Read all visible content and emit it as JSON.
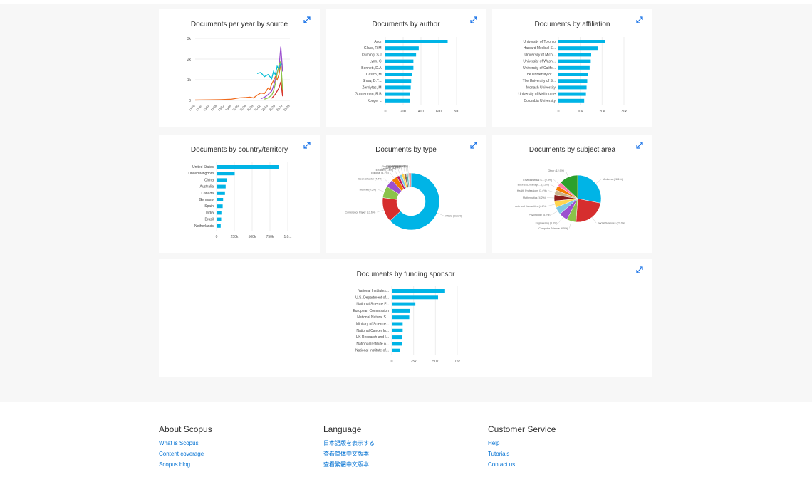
{
  "charts": {
    "year_by_source": {
      "title": "Documents per year by source",
      "y_ticks": [
        "0",
        "1k",
        "2k",
        "3k"
      ],
      "x_ticks": [
        "1976",
        "1980",
        "1984",
        "1988",
        "1992",
        "1996",
        "2000",
        "2004",
        "2008",
        "2012",
        "2016",
        "2020",
        "2024",
        "2028"
      ]
    },
    "by_author": {
      "title": "Documents by author",
      "labels": [
        "Anon",
        "Glass, R.M.",
        "Durning, S.J.",
        "Lynn, C.",
        "Bennett, D.A.",
        "Castro, M.",
        "Shaw, D.T.L.",
        "Zemlytas, M.",
        "Gunderman, R.B.",
        "Konge, L."
      ],
      "ticks": [
        "0",
        "200",
        "400",
        "600",
        "800"
      ]
    },
    "by_affiliation": {
      "title": "Documents by affiliation",
      "labels": [
        "University of Toronto",
        "Harvard Medical S...",
        "University of Mich...",
        "University of Wash...",
        "University of Califo...",
        "The University of ...",
        "The University of S...",
        "Monash University",
        "University of Melbourne",
        "Columbia University"
      ],
      "ticks": [
        "0",
        "10k",
        "20k",
        "30k"
      ]
    },
    "by_country": {
      "title": "Documents by country/territory",
      "labels": [
        "United States",
        "United Kingdom",
        "China",
        "Australia",
        "Canada",
        "Germany",
        "Spain",
        "India",
        "Brazil",
        "Netherlands"
      ],
      "ticks": [
        "0",
        "250k",
        "500k",
        "750k",
        "1.0..."
      ]
    },
    "by_type": {
      "title": "Documents by type",
      "slice_labels": [
        "Article (61.1%)",
        "Conference Paper (13.6%)",
        "Review (6.5%)",
        "Book Chapter (4.4%)",
        "Editorial (3.1%)",
        "Erratum (1.5%)",
        "Letter (1.5%)",
        "Note (1.3%)",
        "Book (1.2%)",
        "Short Survey (0.9%)",
        "Undefined (0.5%)",
        "Other (1.2%)"
      ]
    },
    "by_subject": {
      "title": "Documents by subject area",
      "slice_labels": [
        "Medicine (28.1%)",
        "Social Sciences (23.0%)",
        "Computer Science (6.5%)",
        "Engineering (6.0%)",
        "Psychology (5.2%)",
        "Arts and Humanities (4.6%)",
        "Mathematics (4.2%)",
        "Health Professions (3.4%)",
        "Business, Manage... (3.2%)",
        "Environmental S... (2.9%)",
        "Other (12.9%)"
      ]
    },
    "by_sponsor": {
      "title": "Documents by funding sponsor",
      "labels": [
        "National Institutes...",
        "U.S. Department of...",
        "National Science F...",
        "European Commission",
        "National Natural S...",
        "Ministry of Science...",
        "National Cancer In...",
        "UK Research and I...",
        "National Institute o...",
        "National Institute of..."
      ],
      "ticks": [
        "0",
        "25k",
        "50k",
        "75k"
      ]
    }
  },
  "chart_data": [
    {
      "type": "line",
      "title": "Documents per year by source",
      "ylim": [
        0,
        3000
      ],
      "xlim": [
        1976,
        2028
      ],
      "series": [
        {
          "color": "#f06a1c",
          "x": [
            1976,
            1984,
            1990,
            1996,
            2000,
            2004,
            2006,
            2008,
            2010,
            2012,
            2014,
            2015,
            2016,
            2017,
            2018,
            2019,
            2020,
            2021,
            2022,
            2023,
            2024
          ],
          "values": [
            20,
            30,
            40,
            60,
            120,
            140,
            160,
            120,
            250,
            360,
            330,
            450,
            600,
            520,
            800,
            960,
            1150,
            1000,
            1250,
            1750,
            300
          ]
        },
        {
          "color": "#00bcd4",
          "x": [
            2010,
            2012,
            2014,
            2016,
            2018,
            2019,
            2020,
            2021,
            2022,
            2023,
            2024
          ],
          "values": [
            1300,
            1350,
            1150,
            1250,
            1050,
            1400,
            1250,
            1650,
            1500,
            1800,
            1700
          ]
        },
        {
          "color": "#9c4fcf",
          "x": [
            2012,
            2014,
            2016,
            2018,
            2019,
            2020,
            2021,
            2022,
            2023,
            2024
          ],
          "values": [
            80,
            150,
            280,
            450,
            700,
            1000,
            1350,
            1600,
            2600,
            1400
          ]
        },
        {
          "color": "#8bc34a",
          "x": [
            2014,
            2016,
            2018,
            2019,
            2020,
            2021,
            2022,
            2023,
            2024
          ],
          "values": [
            60,
            120,
            250,
            450,
            800,
            1300,
            1700,
            1900,
            500
          ]
        },
        {
          "color": "#d32f2f",
          "x": [
            2018,
            2020,
            2022,
            2023,
            2024
          ],
          "values": [
            100,
            300,
            600,
            900,
            200
          ]
        }
      ]
    },
    {
      "type": "bar",
      "title": "Documents by author",
      "categories": [
        "Anon",
        "Glass, R.M.",
        "Durning, S.J.",
        "Lynn, C.",
        "Bennett, D.A.",
        "Castro, M.",
        "Shaw, D.T.L.",
        "Zemlytas, M.",
        "Gunderman, R.B.",
        "Konge, L."
      ],
      "values": [
        700,
        375,
        345,
        315,
        315,
        300,
        290,
        285,
        280,
        275
      ],
      "xlim": [
        0,
        800
      ]
    },
    {
      "type": "bar",
      "title": "Documents by affiliation",
      "categories": [
        "University of Toronto",
        "Harvard Medical S...",
        "University of Mich...",
        "University of Wash...",
        "University of Califo...",
        "The University of ...",
        "The University of S...",
        "Monash University",
        "University of Melbourne",
        "Columbia University"
      ],
      "values": [
        21500,
        18000,
        15000,
        14800,
        14300,
        13600,
        13200,
        12900,
        12600,
        11800
      ],
      "xlim": [
        0,
        30000
      ]
    },
    {
      "type": "bar",
      "title": "Documents by country/territory",
      "categories": [
        "United States",
        "United Kingdom",
        "China",
        "Australia",
        "Canada",
        "Germany",
        "Spain",
        "India",
        "Brazil",
        "Netherlands"
      ],
      "values": [
        880000,
        255000,
        150000,
        128000,
        118000,
        92000,
        86000,
        68000,
        65000,
        58000
      ],
      "xlim": [
        0,
        1000000
      ]
    },
    {
      "type": "pie",
      "title": "Documents by type",
      "categories": [
        "Article",
        "Conference Paper",
        "Review",
        "Book Chapter",
        "Editorial",
        "Erratum",
        "Letter",
        "Note",
        "Book",
        "Short Survey",
        "Undefined",
        "Other"
      ],
      "values": [
        61.1,
        13.6,
        6.5,
        4.4,
        3.1,
        1.5,
        1.5,
        1.3,
        1.2,
        0.9,
        0.5,
        1.2
      ],
      "colors": [
        "#00b4e6",
        "#d62e2e",
        "#8bc34a",
        "#9c4fcf",
        "#f57c00",
        "#c2185b",
        "#7ec8e3",
        "#ffd54f",
        "#8d6e63",
        "#4db6ac",
        "#b0bec5",
        "#e57373"
      ]
    },
    {
      "type": "pie",
      "title": "Documents by subject area",
      "categories": [
        "Medicine",
        "Social Sciences",
        "Computer Science",
        "Engineering",
        "Psychology",
        "Arts and Humanities",
        "Mathematics",
        "Health Professions",
        "Business, Manage...",
        "Environmental S...",
        "Other"
      ],
      "values": [
        28.1,
        23.0,
        6.5,
        6.0,
        5.2,
        4.6,
        4.2,
        3.4,
        3.2,
        2.9,
        12.9
      ],
      "colors": [
        "#00b4e6",
        "#d62e2e",
        "#8bc34a",
        "#9c4fcf",
        "#7ec8e3",
        "#ffd54f",
        "#8d1c1c",
        "#c9b18a",
        "#f57c00",
        "#ff80ab",
        "#2ca02c"
      ]
    },
    {
      "type": "bar",
      "title": "Documents by funding sponsor",
      "categories": [
        "National Institutes...",
        "U.S. Department of...",
        "National Science F...",
        "European Commission",
        "National Natural S...",
        "Ministry of Science...",
        "National Cancer In...",
        "UK Research and I...",
        "National Institute o...",
        "National Institute of..."
      ],
      "values": [
        61000,
        53000,
        27000,
        21000,
        20000,
        12500,
        12500,
        12000,
        11500,
        9000
      ],
      "xlim": [
        0,
        75000
      ]
    }
  ],
  "footer": {
    "about": {
      "heading": "About Scopus",
      "links": [
        "What is Scopus",
        "Content coverage",
        "Scopus blog"
      ]
    },
    "language": {
      "heading": "Language",
      "links": [
        "日本語版を表示する",
        "查看简体中文版本",
        "查看繁體中文版本"
      ]
    },
    "service": {
      "heading": "Customer Service",
      "links": [
        "Help",
        "Tutorials",
        "Contact us"
      ]
    }
  },
  "colors": {
    "bar": "#00b4e6",
    "link": "#0070d2",
    "expand_icon": "#1a73e8"
  }
}
